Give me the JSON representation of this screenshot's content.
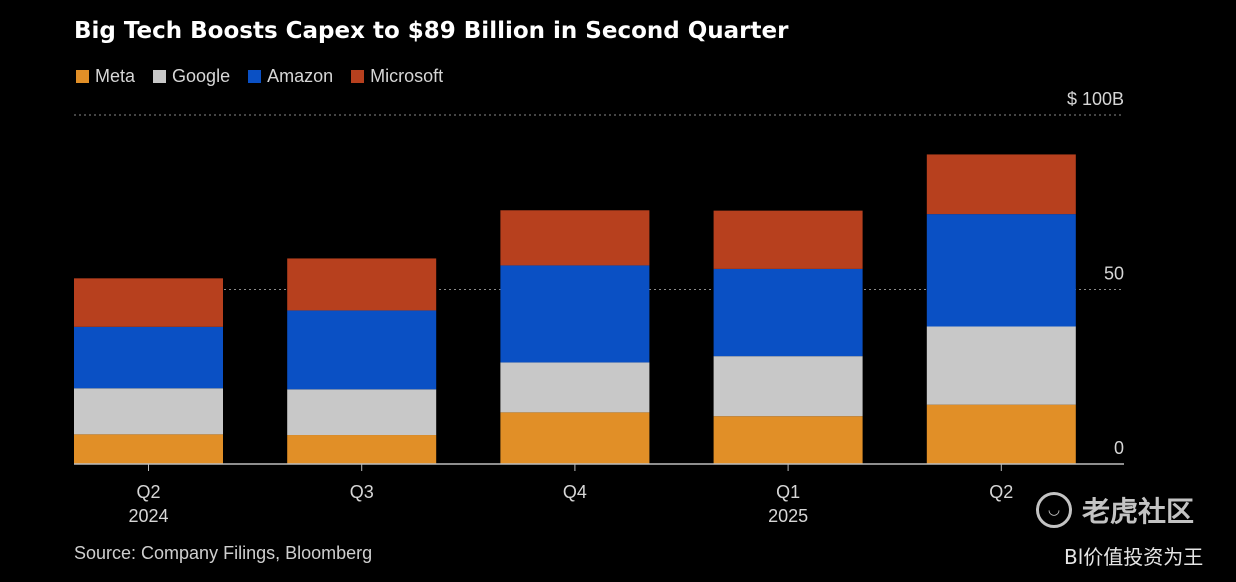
{
  "chart_data": {
    "type": "bar",
    "stacked": true,
    "title": "Big Tech Boosts Capex to $89 Billion in Second Quarter",
    "categories": [
      [
        "Q2",
        "2024"
      ],
      [
        "Q3",
        ""
      ],
      [
        "Q4",
        ""
      ],
      [
        "Q1",
        "2025"
      ],
      [
        "Q2",
        ""
      ]
    ],
    "series": [
      {
        "name": "Meta",
        "color": "#e18f27",
        "values": [
          8.5,
          8.3,
          14.8,
          13.7,
          17.0
        ]
      },
      {
        "name": "Google",
        "color": "#c8c8c8",
        "values": [
          13.2,
          13.1,
          14.3,
          17.2,
          22.4
        ]
      },
      {
        "name": "Amazon",
        "color": "#0a50c4",
        "values": [
          17.6,
          22.6,
          27.8,
          25.0,
          32.2
        ]
      },
      {
        "name": "Microsoft",
        "color": "#b7401e",
        "values": [
          13.9,
          14.9,
          15.8,
          16.7,
          17.1
        ]
      }
    ],
    "ylim": [
      0,
      100
    ],
    "yticks": [
      {
        "value": 0,
        "label": "0"
      },
      {
        "value": 50,
        "label": "50"
      },
      {
        "value": 100,
        "label": "$ 100B"
      }
    ],
    "grid": true,
    "legend": "top-left",
    "source": "Source: Company Filings, Bloomberg"
  },
  "watermark": {
    "brand": "老虎社区",
    "logo": "tiger-logo-icon",
    "caption": "Bl价值投资为王"
  }
}
